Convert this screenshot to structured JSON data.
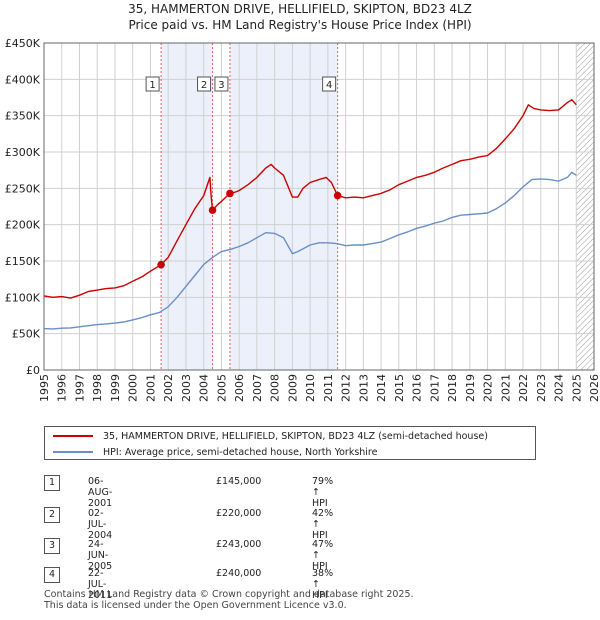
{
  "title_line1": "35, HAMMERTON DRIVE, HELLIFIELD, SKIPTON, BD23 4LZ",
  "title_line2": "Price paid vs. HM Land Registry's House Price Index (HPI)",
  "chart_data": {
    "type": "line",
    "xlim": [
      1995,
      2026
    ],
    "ylim": [
      0,
      450000
    ],
    "y_ticks": [
      0,
      50000,
      100000,
      150000,
      200000,
      250000,
      300000,
      350000,
      400000,
      450000
    ],
    "y_tick_labels": [
      "£0",
      "£50K",
      "£100K",
      "£150K",
      "£200K",
      "£250K",
      "£300K",
      "£350K",
      "£400K",
      "£450K"
    ],
    "x_ticks": [
      1995,
      1996,
      1997,
      1998,
      1999,
      2000,
      2001,
      2002,
      2003,
      2004,
      2005,
      2006,
      2007,
      2008,
      2009,
      2010,
      2011,
      2012,
      2013,
      2014,
      2015,
      2016,
      2017,
      2018,
      2019,
      2020,
      2021,
      2022,
      2023,
      2024,
      2025,
      2026
    ],
    "x_tick_labels": [
      "1995",
      "1996",
      "1997",
      "1998",
      "1999",
      "2000",
      "2001",
      "2002",
      "2003",
      "2004",
      "2005",
      "2006",
      "2007",
      "2008",
      "2009",
      "2010",
      "2011",
      "2012",
      "2013",
      "2014",
      "2015",
      "2016",
      "2017",
      "2018",
      "2019",
      "2020",
      "2021",
      "2022",
      "2023",
      "2024",
      "2025",
      "2026"
    ],
    "grid": true,
    "shaded_spans": [
      [
        2001.6,
        2004.5
      ],
      [
        2005.48,
        2011.55
      ]
    ],
    "forecast_from": 2025.0,
    "series": [
      {
        "name": "35, HAMMERTON DRIVE, HELLIFIELD, SKIPTON, BD23 4LZ (semi-detached house)",
        "color": "#cc0000",
        "points": [
          [
            1995.0,
            102000
          ],
          [
            1995.5,
            100000
          ],
          [
            1996.0,
            101000
          ],
          [
            1996.5,
            99000
          ],
          [
            1997.0,
            103000
          ],
          [
            1997.5,
            108000
          ],
          [
            1998.0,
            110000
          ],
          [
            1998.5,
            112000
          ],
          [
            1999.0,
            113000
          ],
          [
            1999.5,
            116000
          ],
          [
            2000.0,
            122000
          ],
          [
            2000.5,
            128000
          ],
          [
            2001.0,
            136000
          ],
          [
            2001.6,
            145000
          ],
          [
            2002.0,
            155000
          ],
          [
            2002.5,
            178000
          ],
          [
            2003.0,
            200000
          ],
          [
            2003.5,
            222000
          ],
          [
            2004.0,
            240000
          ],
          [
            2004.35,
            265000
          ],
          [
            2004.42,
            240000
          ],
          [
            2004.5,
            220000
          ],
          [
            2004.8,
            228000
          ],
          [
            2005.0,
            232000
          ],
          [
            2005.48,
            243000
          ],
          [
            2005.8,
            245000
          ],
          [
            2006.0,
            247000
          ],
          [
            2006.5,
            255000
          ],
          [
            2007.0,
            265000
          ],
          [
            2007.5,
            278000
          ],
          [
            2007.8,
            283000
          ],
          [
            2008.0,
            278000
          ],
          [
            2008.5,
            268000
          ],
          [
            2009.0,
            238000
          ],
          [
            2009.3,
            238000
          ],
          [
            2009.6,
            250000
          ],
          [
            2010.0,
            258000
          ],
          [
            2010.5,
            262000
          ],
          [
            2010.9,
            265000
          ],
          [
            2011.2,
            258000
          ],
          [
            2011.55,
            240000
          ],
          [
            2012.0,
            237000
          ],
          [
            2012.5,
            238000
          ],
          [
            2013.0,
            237000
          ],
          [
            2013.5,
            240000
          ],
          [
            2014.0,
            243000
          ],
          [
            2014.5,
            248000
          ],
          [
            2015.0,
            255000
          ],
          [
            2015.5,
            260000
          ],
          [
            2016.0,
            265000
          ],
          [
            2016.5,
            268000
          ],
          [
            2017.0,
            272000
          ],
          [
            2017.5,
            278000
          ],
          [
            2018.0,
            283000
          ],
          [
            2018.5,
            288000
          ],
          [
            2019.0,
            290000
          ],
          [
            2019.5,
            293000
          ],
          [
            2020.0,
            295000
          ],
          [
            2020.5,
            305000
          ],
          [
            2021.0,
            318000
          ],
          [
            2021.5,
            332000
          ],
          [
            2022.0,
            350000
          ],
          [
            2022.3,
            365000
          ],
          [
            2022.6,
            360000
          ],
          [
            2023.0,
            358000
          ],
          [
            2023.5,
            357000
          ],
          [
            2024.0,
            358000
          ],
          [
            2024.5,
            368000
          ],
          [
            2024.75,
            372000
          ],
          [
            2025.0,
            365000
          ]
        ]
      },
      {
        "name": "HPI: Average price, semi-detached house, North Yorkshire",
        "color": "#6a8fc8",
        "points": [
          [
            1995.0,
            57000
          ],
          [
            1995.5,
            56500
          ],
          [
            1996.0,
            57500
          ],
          [
            1996.5,
            58000
          ],
          [
            1997.0,
            59500
          ],
          [
            1997.5,
            61000
          ],
          [
            1998.0,
            62500
          ],
          [
            1998.5,
            63500
          ],
          [
            1999.0,
            64500
          ],
          [
            1999.5,
            66000
          ],
          [
            2000.0,
            69000
          ],
          [
            2000.5,
            72000
          ],
          [
            2001.0,
            76000
          ],
          [
            2001.5,
            79000
          ],
          [
            2002.0,
            87000
          ],
          [
            2002.5,
            100000
          ],
          [
            2003.0,
            115000
          ],
          [
            2003.5,
            130000
          ],
          [
            2004.0,
            145000
          ],
          [
            2004.5,
            155000
          ],
          [
            2005.0,
            163000
          ],
          [
            2005.5,
            166000
          ],
          [
            2006.0,
            170000
          ],
          [
            2006.5,
            175000
          ],
          [
            2007.0,
            182000
          ],
          [
            2007.5,
            189000
          ],
          [
            2008.0,
            188000
          ],
          [
            2008.5,
            182000
          ],
          [
            2009.0,
            160000
          ],
          [
            2009.3,
            163000
          ],
          [
            2009.7,
            168000
          ],
          [
            2010.0,
            172000
          ],
          [
            2010.5,
            175000
          ],
          [
            2011.0,
            175000
          ],
          [
            2011.5,
            174000
          ],
          [
            2012.0,
            171000
          ],
          [
            2012.5,
            172000
          ],
          [
            2013.0,
            172000
          ],
          [
            2013.5,
            174000
          ],
          [
            2014.0,
            176000
          ],
          [
            2014.5,
            181000
          ],
          [
            2015.0,
            186000
          ],
          [
            2015.5,
            190000
          ],
          [
            2016.0,
            195000
          ],
          [
            2016.5,
            198000
          ],
          [
            2017.0,
            202000
          ],
          [
            2017.5,
            205000
          ],
          [
            2018.0,
            210000
          ],
          [
            2018.5,
            213000
          ],
          [
            2019.0,
            214000
          ],
          [
            2019.5,
            215000
          ],
          [
            2020.0,
            216000
          ],
          [
            2020.5,
            222000
          ],
          [
            2021.0,
            230000
          ],
          [
            2021.5,
            240000
          ],
          [
            2022.0,
            252000
          ],
          [
            2022.5,
            262000
          ],
          [
            2023.0,
            263000
          ],
          [
            2023.5,
            262000
          ],
          [
            2024.0,
            260000
          ],
          [
            2024.5,
            265000
          ],
          [
            2024.75,
            272000
          ],
          [
            2025.0,
            268000
          ]
        ]
      }
    ],
    "sales": [
      {
        "label": "1",
        "x": 2001.6,
        "price": 145000
      },
      {
        "label": "2",
        "x": 2004.5,
        "price": 220000
      },
      {
        "label": "3",
        "x": 2005.48,
        "price": 243000
      },
      {
        "label": "4",
        "x": 2011.55,
        "price": 240000
      }
    ]
  },
  "legend": {
    "property_label": "35, HAMMERTON DRIVE, HELLIFIELD, SKIPTON, BD23 4LZ (semi-detached house)",
    "hpi_label": "HPI: Average price, semi-detached house, North Yorkshire"
  },
  "transactions": [
    {
      "num": "1",
      "date": "06-AUG-2001",
      "price": "£145,000",
      "hpi": "79% ↑ HPI"
    },
    {
      "num": "2",
      "date": "02-JUL-2004",
      "price": "£220,000",
      "hpi": "42% ↑ HPI"
    },
    {
      "num": "3",
      "date": "24-JUN-2005",
      "price": "£243,000",
      "hpi": "47% ↑ HPI"
    },
    {
      "num": "4",
      "date": "22-JUL-2011",
      "price": "£240,000",
      "hpi": "38% ↑ HPI"
    }
  ],
  "footer": {
    "line1": "Contains HM Land Registry data © Crown copyright and database right 2025.",
    "line2": "This data is licensed under the Open Government Licence v3.0."
  }
}
